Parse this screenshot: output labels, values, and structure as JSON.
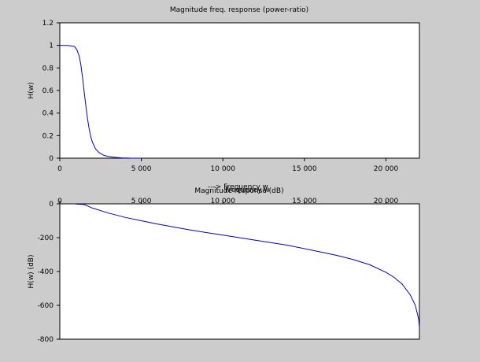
{
  "chart_data": [
    {
      "type": "line",
      "title": "Magnitude freq. response (power-ratio)",
      "xlabel": "---> Frequency w",
      "ylabel": "H(w)",
      "xlim": [
        0,
        22050
      ],
      "ylim": [
        0,
        1.2
      ],
      "x_ticks": [
        0,
        5000,
        10000,
        15000,
        20000
      ],
      "x_tick_labels": [
        "0",
        "5 000",
        "10 000",
        "15 000",
        "20 000"
      ],
      "y_ticks": [
        0,
        0.2,
        0.4,
        0.6,
        0.8,
        1,
        1.2
      ],
      "y_tick_labels": [
        "0",
        "0.2",
        "0.4",
        "0.6",
        "0.8",
        "1",
        "1.2"
      ],
      "grid": false,
      "series": [
        {
          "color": "#0000cc",
          "x": [
            0,
            500,
            900,
            1050,
            1200,
            1300,
            1400,
            1500,
            1600,
            1700,
            1800,
            1900,
            2000,
            2200,
            2400,
            2700,
            3000,
            3400,
            3800,
            4300,
            5000
          ],
          "y": [
            1.0,
            1.0,
            0.99,
            0.96,
            0.9,
            0.82,
            0.71,
            0.58,
            0.46,
            0.35,
            0.26,
            0.19,
            0.14,
            0.08,
            0.05,
            0.025,
            0.014,
            0.007,
            0.003,
            0.001,
            0.0
          ]
        }
      ]
    },
    {
      "type": "line",
      "title": "Magnitude response (dB)",
      "xlabel": "Frequency w",
      "ylabel": "H(w) (dB)",
      "xlim": [
        0,
        22050
      ],
      "ylim": [
        -800,
        0
      ],
      "x_ticks": [
        0,
        5000,
        10000,
        15000,
        20000
      ],
      "x_tick_labels": [
        "0",
        "5 000",
        "10 000",
        "15 000",
        "20 000"
      ],
      "y_ticks": [
        0,
        -200,
        -400,
        -600,
        -800
      ],
      "y_tick_labels": [
        "0",
        "-200",
        "-400",
        "-600",
        "-800"
      ],
      "grid": false,
      "series": [
        {
          "color": "#0000cc",
          "x": [
            1000,
            1500,
            2000,
            3000,
            4000,
            5000,
            6000,
            8000,
            10000,
            12000,
            14000,
            16000,
            17000,
            18000,
            19000,
            20000,
            20500,
            21000,
            21500,
            21800,
            22000,
            22050
          ],
          "y": [
            -2,
            -4,
            -25,
            -55,
            -80,
            -100,
            -120,
            -155,
            -185,
            -215,
            -245,
            -285,
            -305,
            -330,
            -360,
            -405,
            -435,
            -475,
            -540,
            -600,
            -680,
            -730
          ]
        }
      ]
    }
  ]
}
